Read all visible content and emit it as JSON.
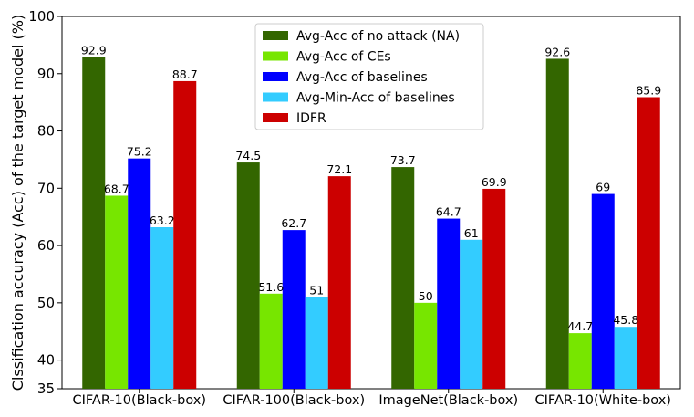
{
  "chart_data": {
    "type": "bar",
    "ylabel": "Clssification accuracy (Acc) of the target model (%)",
    "ylim": [
      35,
      100
    ],
    "yticks": [
      35,
      40,
      50,
      60,
      70,
      80,
      90,
      100
    ],
    "categories": [
      "CIFAR-10(Black-box)",
      "CIFAR-100(Black-box)",
      "ImageNet(Black-box)",
      "CIFAR-10(White-box)"
    ],
    "series": [
      {
        "name": "Avg-Acc of no attack (NA)",
        "color": "#336600",
        "values": [
          92.9,
          74.5,
          73.7,
          92.6
        ],
        "labels": [
          "92.9",
          "74.5",
          "73.7",
          "92.6"
        ]
      },
      {
        "name": "Avg-Acc of CEs",
        "color": "#77e600",
        "values": [
          68.7,
          51.6,
          50,
          44.7
        ],
        "labels": [
          "68.7",
          "51.6",
          "50",
          "44.7"
        ]
      },
      {
        "name": "Avg-Acc of baselines",
        "color": "#0000ff",
        "values": [
          75.2,
          62.7,
          64.7,
          69
        ],
        "labels": [
          "75.2",
          "62.7",
          "64.7",
          "69"
        ]
      },
      {
        "name": "Avg-Min-Acc of baselines",
        "color": "#33ccff",
        "values": [
          63.2,
          51,
          61,
          45.8
        ],
        "labels": [
          "63.2",
          "51",
          "61",
          "45.8"
        ]
      },
      {
        "name": "IDFR",
        "color": "#cc0000",
        "values": [
          88.7,
          72.1,
          69.9,
          85.9
        ],
        "labels": [
          "88.7",
          "72.1",
          "69.9",
          "85.9"
        ]
      }
    ],
    "grid": false,
    "legend_position": "top-center"
  }
}
